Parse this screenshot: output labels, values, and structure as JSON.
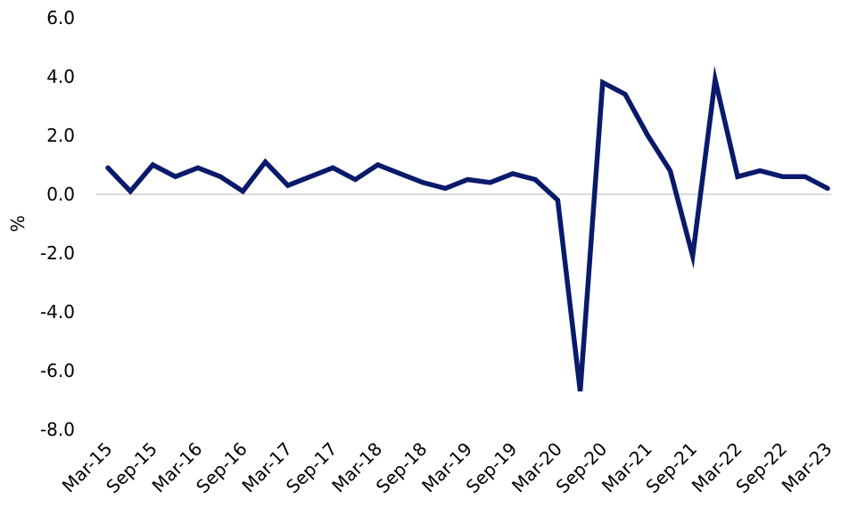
{
  "chart_data": {
    "type": "line",
    "title": "",
    "xlabel": "",
    "ylabel": "%",
    "ylim": [
      -8.0,
      6.0
    ],
    "yticks": [
      "6.0",
      "4.0",
      "2.0",
      "0.0",
      "-2.0",
      "-4.0",
      "-6.0",
      "-8.0"
    ],
    "ytick_values": [
      6,
      4,
      2,
      0,
      -2,
      -4,
      -6,
      -8
    ],
    "x": [
      "Mar-15",
      "Jun-15",
      "Sep-15",
      "Dec-15",
      "Mar-16",
      "Jun-16",
      "Sep-16",
      "Dec-16",
      "Mar-17",
      "Jun-17",
      "Sep-17",
      "Dec-17",
      "Mar-18",
      "Jun-18",
      "Sep-18",
      "Dec-18",
      "Mar-19",
      "Jun-19",
      "Sep-19",
      "Dec-19",
      "Mar-20",
      "Jun-20",
      "Sep-20",
      "Dec-20",
      "Mar-21",
      "Jun-21",
      "Sep-21",
      "Dec-21",
      "Mar-22",
      "Jun-22",
      "Sep-22",
      "Dec-22",
      "Mar-23"
    ],
    "xtick_labels": [
      "Mar-15",
      "Sep-15",
      "Mar-16",
      "Sep-16",
      "Mar-17",
      "Sep-17",
      "Mar-18",
      "Sep-18",
      "Mar-19",
      "Sep-19",
      "Mar-20",
      "Sep-20",
      "Mar-21",
      "Sep-21",
      "Mar-22",
      "Sep-22",
      "Mar-23"
    ],
    "series": [
      {
        "values": [
          0.9,
          0.1,
          1.0,
          0.6,
          0.9,
          0.6,
          0.1,
          1.1,
          0.3,
          0.6,
          0.9,
          0.5,
          1.0,
          0.7,
          0.4,
          0.2,
          0.5,
          0.4,
          0.7,
          0.5,
          -0.2,
          -6.7,
          3.8,
          3.4,
          2.0,
          0.8,
          -2.1,
          3.9,
          0.6,
          0.8,
          0.6,
          0.6,
          0.2
        ],
        "color": "#0a1a6b"
      }
    ],
    "zero_line_color": "#c8c8c8",
    "grid": false,
    "legend": "none"
  }
}
